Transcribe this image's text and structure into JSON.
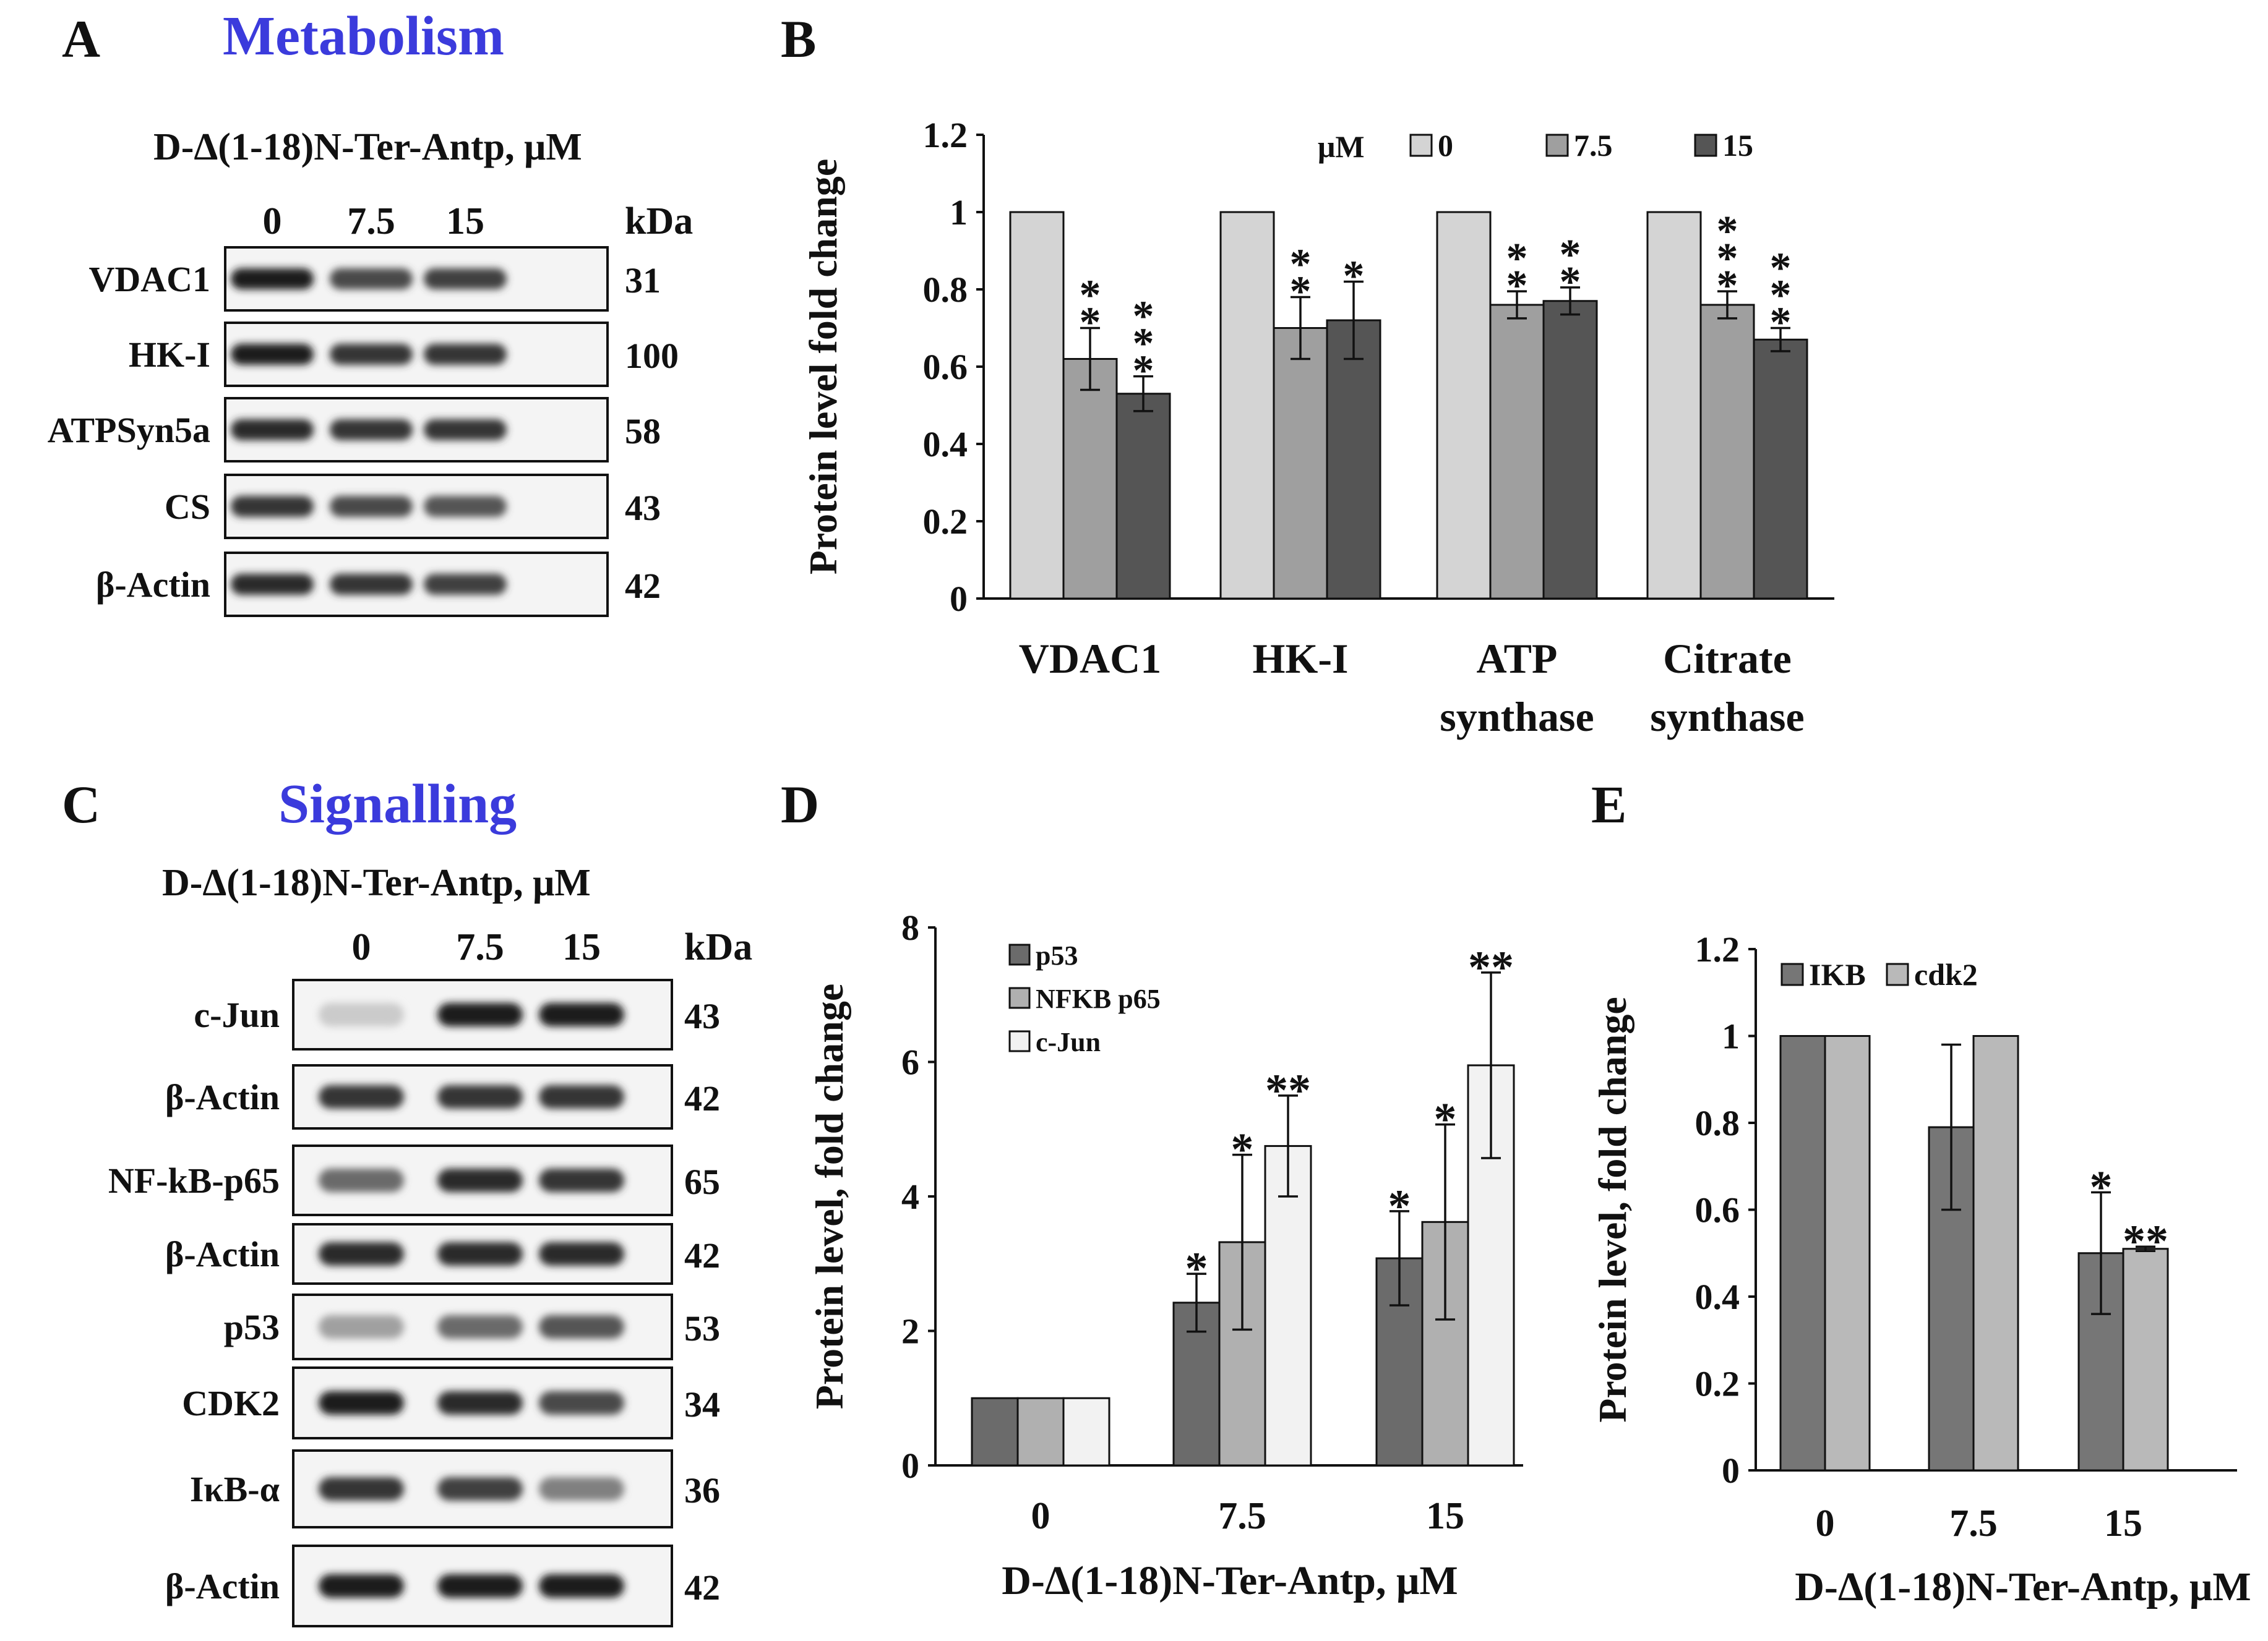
{
  "panels": {
    "a": {
      "letter": "A",
      "title": "Metabolism",
      "treatment_label": "D-Δ(1-18)N-Ter-Antp, μM",
      "lanes": [
        "0",
        "7.5",
        "15"
      ],
      "kda_header": "kDa",
      "blots": [
        {
          "name": "VDAC1",
          "kda": "31",
          "band_intensity": [
            0.95,
            0.75,
            0.8
          ]
        },
        {
          "name": "HK-I",
          "kda": "100",
          "band_intensity": [
            0.95,
            0.85,
            0.85
          ]
        },
        {
          "name": "ATPSyn5a",
          "kda": "58",
          "band_intensity": [
            0.9,
            0.85,
            0.85
          ]
        },
        {
          "name": "CS",
          "kda": "43",
          "band_intensity": [
            0.85,
            0.75,
            0.7
          ]
        },
        {
          "name": "β-Actin",
          "kda": "42",
          "band_intensity": [
            0.9,
            0.85,
            0.8
          ]
        }
      ]
    },
    "c": {
      "letter": "C",
      "title": "Signalling",
      "treatment_label": "D-Δ(1-18)N-Ter-Antp, μM",
      "lanes": [
        "0",
        "7.5",
        "15"
      ],
      "kda_header": "kDa",
      "blots": [
        {
          "name": "c-Jun",
          "kda": "43",
          "band_intensity": [
            0.15,
            0.95,
            0.95
          ]
        },
        {
          "name": "β-Actin",
          "kda": "42",
          "band_intensity": [
            0.85,
            0.85,
            0.85
          ]
        },
        {
          "name": "NF-kB-p65",
          "kda": "65",
          "band_intensity": [
            0.6,
            0.9,
            0.85
          ]
        },
        {
          "name": "β-Actin",
          "kda": "42",
          "band_intensity": [
            0.9,
            0.9,
            0.9
          ]
        },
        {
          "name": "p53",
          "kda": "53",
          "band_intensity": [
            0.35,
            0.6,
            0.7
          ]
        },
        {
          "name": "CDK2",
          "kda": "34",
          "band_intensity": [
            0.95,
            0.9,
            0.75
          ]
        },
        {
          "name": "IκB-α",
          "kda": "36",
          "band_intensity": [
            0.85,
            0.8,
            0.5
          ]
        },
        {
          "name": "β-Actin",
          "kda": "42",
          "band_intensity": [
            0.95,
            0.95,
            0.95
          ]
        }
      ]
    }
  },
  "chart_data": [
    {
      "panel": "B",
      "type": "bar",
      "ylabel": "Protein level fold change",
      "ylim": [
        0,
        1.2
      ],
      "yticks": [
        "0",
        "0.2",
        "0.4",
        "0.6",
        "0.8",
        "1",
        "1.2"
      ],
      "legend_title": "μM",
      "categories": [
        [
          "VDAC1"
        ],
        [
          "HK-I"
        ],
        [
          "ATP",
          "synthase"
        ],
        [
          "Citrate",
          "synthase"
        ]
      ],
      "series": [
        {
          "name": "0",
          "color": "#d4d4d4",
          "values": [
            1,
            1,
            1,
            1
          ],
          "errors": [
            0,
            0,
            0,
            0
          ],
          "stars": [
            "",
            "",
            "",
            ""
          ]
        },
        {
          "name": "7.5",
          "color": "#9f9f9f",
          "values": [
            0.62,
            0.7,
            0.76,
            0.76
          ],
          "errors": [
            0.08,
            0.08,
            0.035,
            0.035
          ],
          "stars": [
            "**",
            "**",
            "**",
            "***"
          ]
        },
        {
          "name": "15",
          "color": "#555555",
          "values": [
            0.53,
            0.72,
            0.77,
            0.67
          ],
          "errors": [
            0.045,
            0.1,
            0.035,
            0.03
          ],
          "stars": [
            "***",
            "*",
            "**",
            "***"
          ]
        }
      ]
    },
    {
      "panel": "D",
      "type": "bar",
      "ylabel": "Protein level, fold change",
      "xlabel": "D-Δ(1-18)N-Ter-Antp, μM",
      "ylim": [
        0,
        8
      ],
      "yticks": [
        "0",
        "2",
        "4",
        "6",
        "8"
      ],
      "categories": [
        "0",
        "7.5",
        "15"
      ],
      "series": [
        {
          "name": "p53",
          "color": "#6b6b6b",
          "values": [
            1,
            2.42,
            3.08
          ],
          "errors": [
            0,
            0.43,
            0.7
          ],
          "stars": [
            "",
            "*",
            "*"
          ]
        },
        {
          "name": "NFKB p65",
          "color": "#b0b0b0",
          "values": [
            1,
            3.32,
            3.62
          ],
          "errors": [
            0,
            1.3,
            1.45
          ],
          "stars": [
            "",
            "*",
            "*"
          ]
        },
        {
          "name": "c-Jun",
          "color": "#f2f2f2",
          "values": [
            1,
            4.75,
            5.95
          ],
          "errors": [
            0,
            0.75,
            1.38
          ],
          "stars": [
            "",
            "**",
            "**"
          ]
        }
      ]
    },
    {
      "panel": "E",
      "type": "bar",
      "ylabel": "Protein level, fold change",
      "xlabel": "D-Δ(1-18)N-Ter-Antp, μM",
      "ylim": [
        0,
        1.2
      ],
      "yticks": [
        "0",
        "0.2",
        "0.4",
        "0.6",
        "0.8",
        "1",
        "1.2"
      ],
      "categories": [
        "0",
        "7.5",
        "15"
      ],
      "series": [
        {
          "name": "IKB",
          "color": "#767676",
          "values": [
            1,
            0.79,
            0.5
          ],
          "errors": [
            0,
            0.19,
            0.14
          ],
          "stars": [
            "",
            "",
            "*"
          ]
        },
        {
          "name": "cdk2",
          "color": "#b9b9b9",
          "values": [
            1,
            1.0,
            0.51
          ],
          "errors": [
            0,
            0,
            0.005
          ],
          "stars": [
            "",
            "",
            "**"
          ]
        }
      ]
    }
  ]
}
